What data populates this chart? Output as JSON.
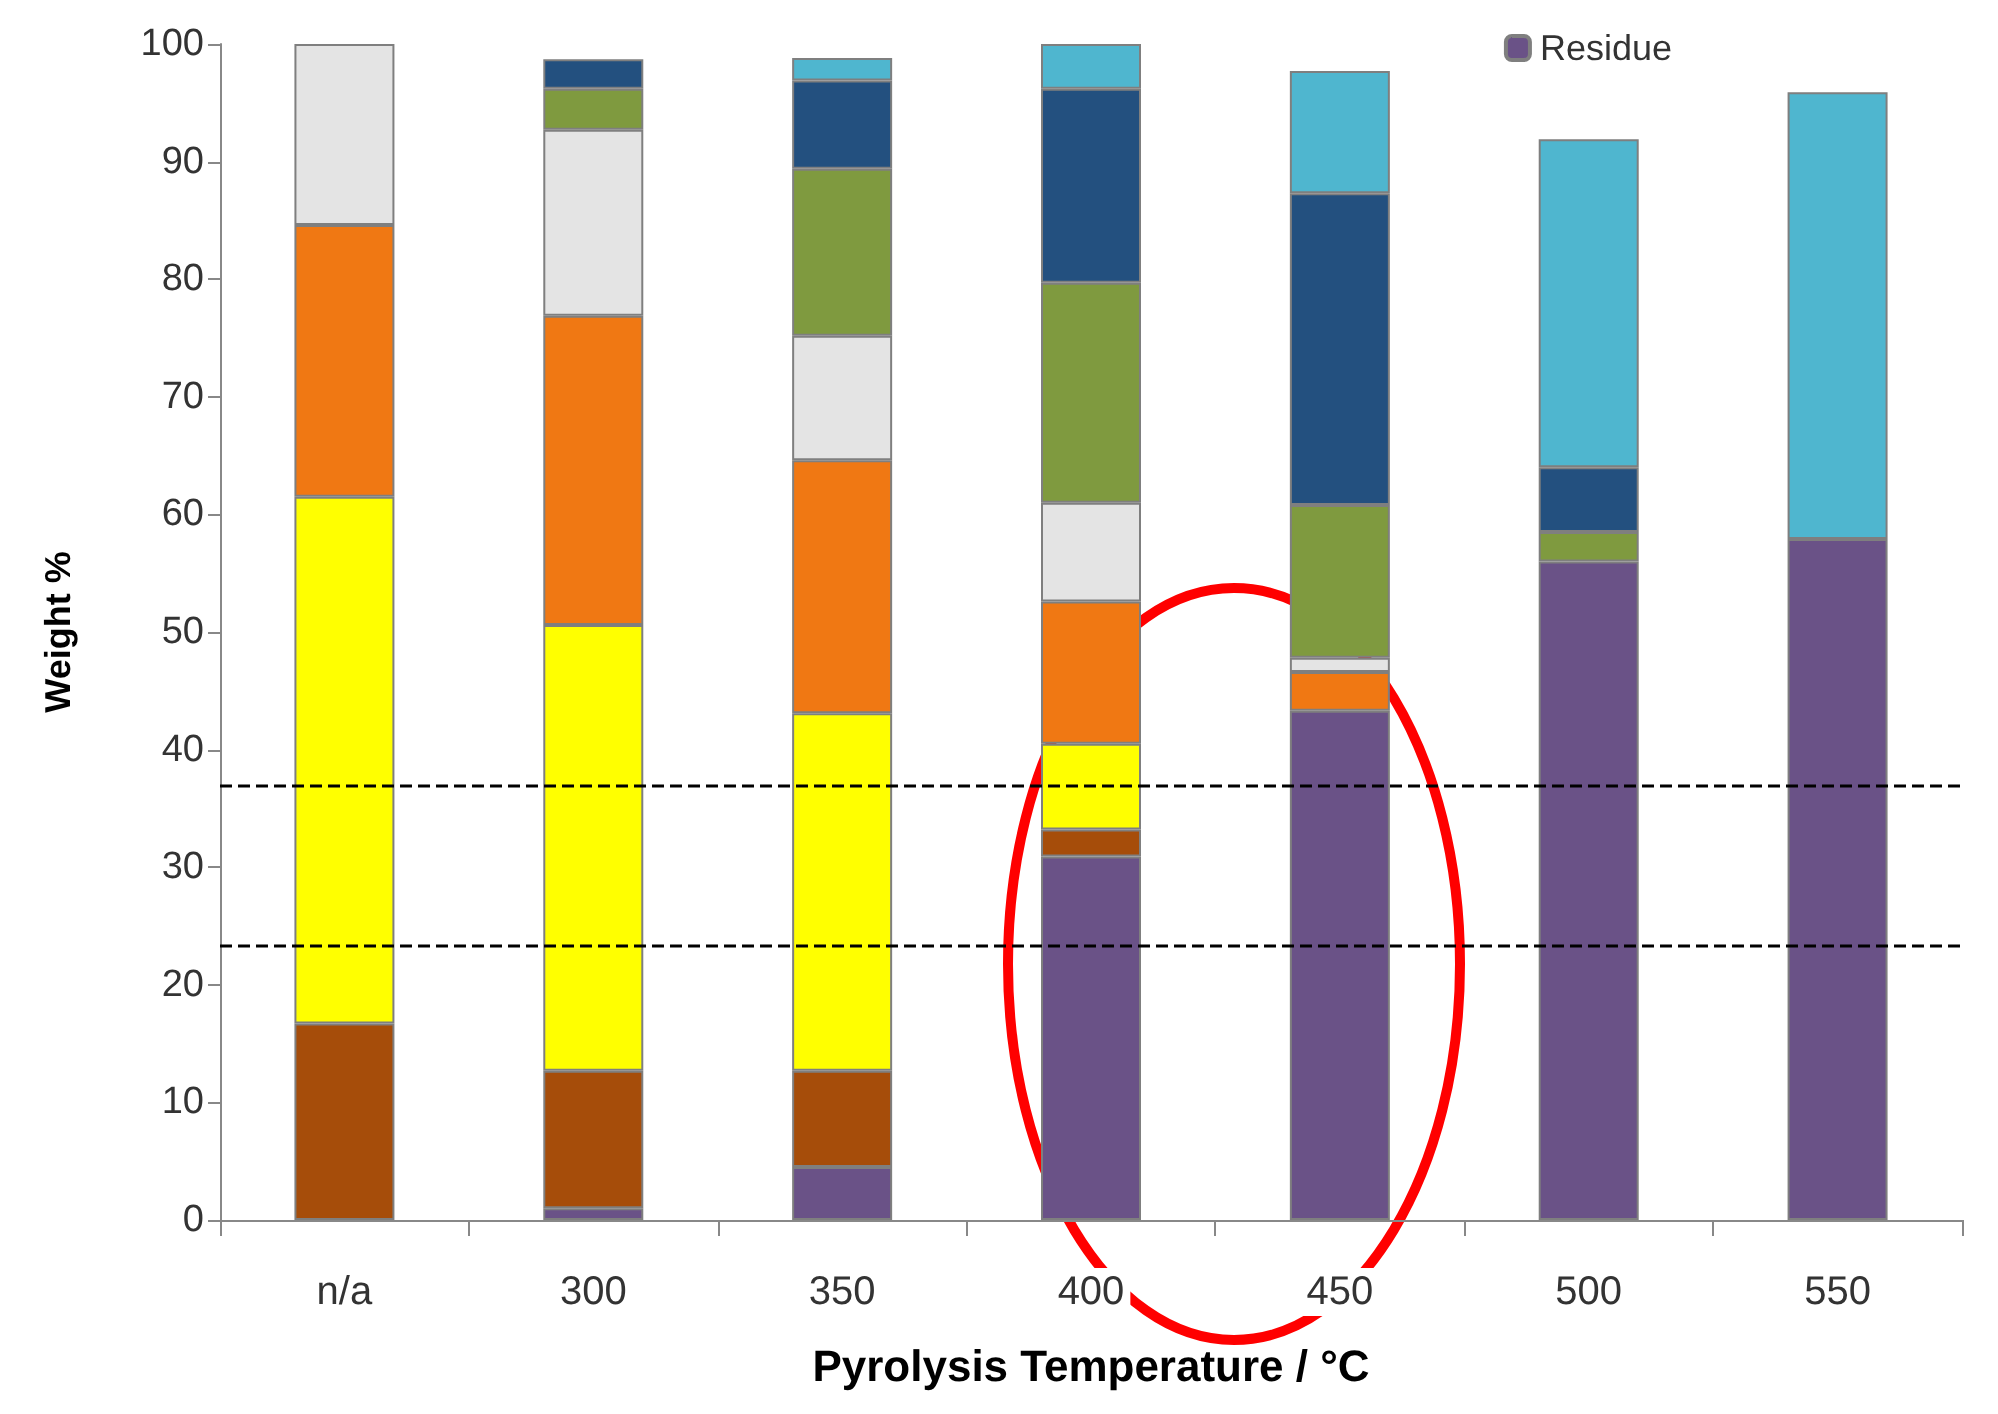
{
  "chart_data": {
    "type": "bar",
    "stacked": true,
    "xlabel": "Pyrolysis Temperature / °C",
    "ylabel": "Weight %",
    "categories": [
      "n/a",
      "300",
      "350",
      "400",
      "450",
      "500",
      "550"
    ],
    "series": [
      {
        "name": "Residue",
        "color": "#6a5287",
        "values": [
          null,
          1,
          4.5,
          30.9,
          43.3,
          56,
          57.9
        ]
      },
      {
        "color": "#a64d0a",
        "values": [
          16.7,
          11.7,
          8.2,
          2.3,
          null,
          null,
          null
        ]
      },
      {
        "color": "#ffff00",
        "values": [
          44.8,
          37.9,
          30.4,
          7.3,
          null,
          null,
          null
        ]
      },
      {
        "color": "#f07813",
        "values": [
          23.1,
          26.3,
          21.5,
          12.1,
          3.3,
          null,
          null
        ]
      },
      {
        "color": "#e4e4e4",
        "values": [
          15.4,
          15.8,
          10.6,
          8.4,
          1.2,
          null,
          null
        ]
      },
      {
        "color": "#7f9a3f",
        "values": [
          null,
          3.5,
          14.2,
          18.7,
          13,
          2.5,
          null
        ]
      },
      {
        "color": "#23507f",
        "values": [
          null,
          2.5,
          7.5,
          16.5,
          26.5,
          5.5,
          null
        ]
      },
      {
        "color": "#4fb6cf",
        "values": [
          null,
          null,
          1.9,
          3.8,
          10.4,
          27.9,
          38
        ]
      }
    ],
    "ylim": [
      0,
      100
    ],
    "yticks": [
      0,
      10,
      20,
      30,
      40,
      50,
      60,
      70,
      80,
      90,
      100
    ],
    "grid": false,
    "legend": "top right",
    "ref_lines": [
      {
        "axis": "y",
        "value": 37,
        "color": "#000000",
        "line_style": "dashed"
      },
      {
        "axis": "y",
        "value": 23.3,
        "color": "#000000",
        "line_style": "dashed"
      }
    ]
  }
}
